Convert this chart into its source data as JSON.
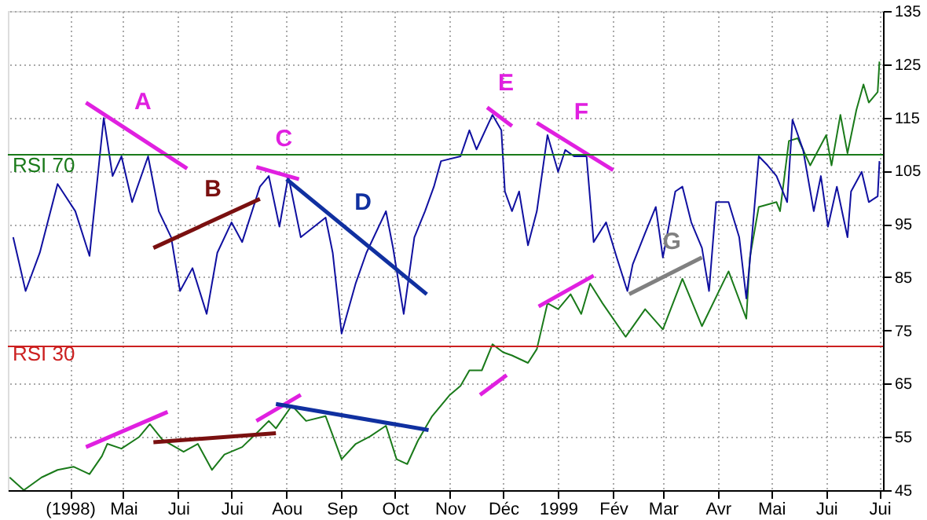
{
  "chart_data": {
    "type": "line",
    "xlim": [
      "1998-02-25",
      "1999-07-03"
    ],
    "ylim": [
      45,
      135
    ],
    "xticks": [
      {
        "value": "1998-04-01",
        "label": "(1998)"
      },
      {
        "value": "1998-05-01",
        "label": "Mai"
      },
      {
        "value": "1998-06-01",
        "label": "Jui"
      },
      {
        "value": "1998-07-01",
        "label": "Jui"
      },
      {
        "value": "1998-08-01",
        "label": "Aou"
      },
      {
        "value": "1998-09-01",
        "label": "Sep"
      },
      {
        "value": "1998-10-01",
        "label": "Oct"
      },
      {
        "value": "1998-11-01",
        "label": "Nov"
      },
      {
        "value": "1998-12-01",
        "label": "Déc"
      },
      {
        "value": "1999-01-01",
        "label": "1999"
      },
      {
        "value": "1999-02-01",
        "label": "Fév"
      },
      {
        "value": "1999-03-01",
        "label": "Mar"
      },
      {
        "value": "1999-04-01",
        "label": "Avr"
      },
      {
        "value": "1999-05-01",
        "label": "Mai"
      },
      {
        "value": "1999-06-01",
        "label": "Jui"
      },
      {
        "value": "1999-07-01",
        "label": "Jui"
      }
    ],
    "yticks": [
      45,
      55,
      65,
      75,
      85,
      95,
      105,
      115,
      125,
      135
    ],
    "grid": true,
    "series": [
      {
        "color": "#1a7a1a",
        "x": [
          "1998-02-26",
          "1998-03-06",
          "1998-03-16",
          "1998-03-25",
          "1998-04-03",
          "1998-04-12",
          "1998-04-19",
          "1998-04-22",
          "1998-04-30",
          "1998-05-10",
          "1998-05-16",
          "1998-05-23",
          "1998-06-04",
          "1998-06-12",
          "1998-06-20",
          "1998-06-27",
          "1998-07-07",
          "1998-07-16",
          "1998-07-22",
          "1998-07-26",
          "1998-08-04",
          "1998-08-12",
          "1998-08-23",
          "1998-09-01",
          "1998-09-09",
          "1998-09-17",
          "1998-09-26",
          "1998-10-02",
          "1998-10-08",
          "1998-10-14",
          "1998-10-22",
          "1998-11-01",
          "1998-11-07",
          "1998-11-12",
          "1998-11-19",
          "1998-11-25",
          "1998-12-01",
          "1998-12-06",
          "1998-12-15",
          "1998-12-20",
          "1998-12-26",
          "1999-01-01",
          "1999-01-08",
          "1999-01-14",
          "1999-01-19",
          "1999-01-26",
          "1999-02-08",
          "1999-02-19",
          "1999-03-01",
          "1999-03-12",
          "1999-03-23",
          "1999-04-07",
          "1999-04-17",
          "1999-04-19",
          "1999-04-24",
          "1999-05-04",
          "1999-05-06",
          "1999-05-11",
          "1999-05-16",
          "1999-05-23",
          "1999-06-01",
          "1999-06-04",
          "1999-06-09",
          "1999-06-13",
          "1999-06-18",
          "1999-06-22",
          "1999-06-25",
          "1999-06-30",
          "1999-07-01"
        ],
        "values": [
          47.4,
          45,
          47.4,
          48.8,
          49.4,
          48,
          51.4,
          53.7,
          52.8,
          55,
          57.4,
          54.5,
          52.2,
          53.7,
          48.8,
          51.7,
          53.1,
          56,
          58,
          56.6,
          60.9,
          58,
          58.9,
          50.8,
          53.7,
          55.1,
          57.1,
          50.8,
          49.9,
          54.3,
          58.9,
          62.9,
          64.6,
          67.5,
          67.5,
          72.4,
          70.9,
          70.3,
          68.9,
          71.5,
          80.1,
          79,
          81.8,
          78.1,
          83.8,
          80.1,
          73.8,
          79,
          75.2,
          84.7,
          75.8,
          86.1,
          77.2,
          88.7,
          98.2,
          99.1,
          97.4,
          110.6,
          111.1,
          106,
          111.7,
          106,
          115.5,
          108.3,
          116.4,
          121.2,
          117.8,
          119.8,
          125.5
        ]
      },
      {
        "color": "#1010a0",
        "x": [
          "1998-02-28",
          "1998-03-07",
          "1998-03-15",
          "1998-03-25",
          "1998-04-04",
          "1998-04-12",
          "1998-04-20",
          "1998-04-25",
          "1998-04-30",
          "1998-05-06",
          "1998-05-15",
          "1998-05-21",
          "1998-05-28",
          "1998-06-02",
          "1998-06-09",
          "1998-06-17",
          "1998-06-23",
          "1998-07-01",
          "1998-07-07",
          "1998-07-17",
          "1998-07-22",
          "1998-07-28",
          "1998-08-02",
          "1998-08-09",
          "1998-08-23",
          "1998-08-27",
          "1998-09-01",
          "1998-09-09",
          "1998-09-15",
          "1998-09-26",
          "1998-09-30",
          "1998-10-06",
          "1998-10-12",
          "1998-10-18",
          "1998-10-23",
          "1998-10-27",
          "1998-11-07",
          "1998-11-12",
          "1998-11-16",
          "1998-11-25",
          "1998-11-30",
          "1998-12-02",
          "1998-12-06",
          "1998-12-10",
          "1998-12-15",
          "1998-12-20",
          "1998-12-26",
          "1999-01-01",
          "1999-01-05",
          "1999-01-10",
          "1999-01-17",
          "1999-01-21",
          "1999-01-28",
          "1999-02-03",
          "1999-02-09",
          "1999-02-12",
          "1999-02-19",
          "1999-02-25",
          "1999-03-01",
          "1999-03-08",
          "1999-03-12",
          "1999-03-17",
          "1999-03-23",
          "1999-03-27",
          "1999-03-31",
          "1999-04-07",
          "1999-04-13",
          "1999-04-17",
          "1999-04-19",
          "1999-04-24",
          "1999-04-29",
          "1999-05-04",
          "1999-05-10",
          "1999-05-13",
          "1999-05-19",
          "1999-05-25",
          "1999-05-29",
          "1999-06-02",
          "1999-06-07",
          "1999-06-13",
          "1999-06-15",
          "1999-06-21",
          "1999-06-25",
          "1999-06-30",
          "1999-07-01"
        ],
        "values": [
          92.5,
          82.4,
          89.6,
          102.5,
          97.4,
          89,
          114.9,
          104,
          107.7,
          99.1,
          107.7,
          97.4,
          92.5,
          82.4,
          86.7,
          78.1,
          89.6,
          95.3,
          91.6,
          102,
          104,
          94.5,
          104,
          92.5,
          96.2,
          89.6,
          74.4,
          83.9,
          89.6,
          97.4,
          90.5,
          78.1,
          92.5,
          97.4,
          102,
          106.8,
          107.7,
          112.6,
          109,
          115.5,
          112.6,
          101.1,
          97.4,
          101.1,
          91,
          97.4,
          111.7,
          104.8,
          108.9,
          107.7,
          107.7,
          91.6,
          95.3,
          88.7,
          82.4,
          87.4,
          93.3,
          98.2,
          88.7,
          101.1,
          102,
          95.3,
          90.5,
          82.4,
          99.1,
          99.1,
          92.5,
          81,
          88,
          107.7,
          106,
          104,
          99.1,
          114.6,
          108.9,
          97.4,
          104,
          94.5,
          102,
          92.5,
          101.1,
          104.8,
          99.1,
          100.2,
          106.8
        ]
      },
      {
        "name": "A",
        "color": "#e020e0",
        "x": [
          "1998-04-10",
          "1998-06-06"
        ],
        "values": [
          117.8,
          105.4
        ]
      },
      {
        "name": "B",
        "color": "#7a1010",
        "x": [
          "1998-05-18",
          "1998-07-17"
        ],
        "values": [
          90.5,
          99.7
        ]
      },
      {
        "name": "C",
        "color": "#e020e0",
        "x": [
          "1998-07-15",
          "1998-08-08"
        ],
        "values": [
          105.7,
          103.4
        ]
      },
      {
        "name": "D",
        "color": "#1030a0",
        "x": [
          "1998-08-01",
          "1998-10-19"
        ],
        "values": [
          103.4,
          81.8
        ]
      },
      {
        "name": "E",
        "color": "#e020e0",
        "x": [
          "1998-11-22",
          "1998-12-06"
        ],
        "values": [
          116.9,
          113.4
        ]
      },
      {
        "name": "F",
        "color": "#e020e0",
        "x": [
          "1998-12-20",
          "1999-02-01"
        ],
        "values": [
          114,
          105.1
        ]
      },
      {
        "name": "G",
        "color": "#808080",
        "x": [
          "1999-02-10",
          "1999-03-23"
        ],
        "values": [
          81.8,
          88.7
        ]
      },
      {
        "color": "#e020e0",
        "x": [
          "1998-04-10",
          "1998-05-26"
        ],
        "values": [
          53.1,
          59.7
        ]
      },
      {
        "color": "#7a1010",
        "x": [
          "1998-05-18",
          "1998-07-26"
        ],
        "values": [
          54,
          55.7
        ]
      },
      {
        "color": "#e020e0",
        "x": [
          "1998-07-15",
          "1998-08-09"
        ],
        "values": [
          58,
          62.9
        ]
      },
      {
        "color": "#1030a0",
        "x": [
          "1998-07-26",
          "1998-10-20"
        ],
        "values": [
          61.2,
          56.3
        ]
      },
      {
        "color": "#e020e0",
        "x": [
          "1998-11-18",
          "1998-12-03"
        ],
        "values": [
          62.9,
          66.6
        ]
      },
      {
        "color": "#e020e0",
        "x": [
          "1998-12-21",
          "1999-01-21"
        ],
        "values": [
          79.5,
          85.3
        ]
      }
    ],
    "ref_lines": [
      {
        "axis": "y",
        "value": 108,
        "label": "RSI 70",
        "color": "#1a7a1a"
      },
      {
        "axis": "y",
        "value": 72,
        "label": "RSI 30",
        "color": "#cc2020"
      }
    ]
  }
}
